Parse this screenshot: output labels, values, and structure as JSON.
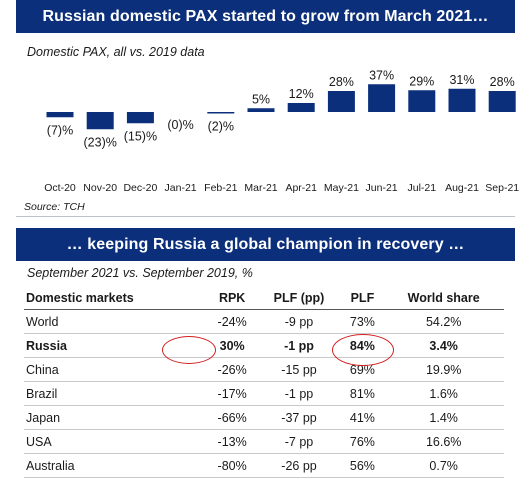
{
  "top_panel": {
    "title": "Russian domestic PAX started to grow from March 2021…",
    "subtitle": "Domestic PAX, all vs. 2019 data",
    "source": "Source: TCH"
  },
  "chart_data": {
    "type": "bar",
    "title": "Domestic PAX, all vs. 2019 data",
    "xlabel": "",
    "ylabel": "",
    "unit": "%",
    "categories": [
      "Oct-20",
      "Nov-20",
      "Dec-20",
      "Jan-21",
      "Feb-21",
      "Mar-21",
      "Apr-21",
      "May-21",
      "Jun-21",
      "Jul-21",
      "Aug-21",
      "Sep-21"
    ],
    "values": [
      -7,
      -23,
      -15,
      0,
      -2,
      5,
      12,
      28,
      37,
      29,
      31,
      28
    ],
    "value_labels": [
      "(7)%",
      "(23)%",
      "(15)%",
      "(0)%",
      "(2)%",
      "5%",
      "12%",
      "28%",
      "37%",
      "29%",
      "31%",
      "28%"
    ],
    "color": "#0b2f7a",
    "grid": false,
    "legend": "none"
  },
  "bottom_panel": {
    "title": "… keeping Russia a global champion in recovery …",
    "subtitle": "September 2021 vs. September 2019, %",
    "table": {
      "headers": [
        "Domestic markets",
        "RPK",
        "PLF (pp)",
        "PLF",
        "World share"
      ],
      "rows": [
        [
          "World",
          "-24%",
          "-9 pp",
          "73%",
          "54.2%"
        ],
        [
          "Russia",
          "30%",
          "-1 pp",
          "84%",
          "3.4%"
        ],
        [
          "China",
          "-26%",
          "-15 pp",
          "69%",
          "19.9%"
        ],
        [
          "Brazil",
          "-17%",
          "-1 pp",
          "81%",
          "1.6%"
        ],
        [
          "Japan",
          "-66%",
          "-37 pp",
          "41%",
          "1.4%"
        ],
        [
          "USA",
          "-13%",
          "-7 pp",
          "76%",
          "16.6%"
        ],
        [
          "Australia",
          "-80%",
          "-26 pp",
          "56%",
          "0.7%"
        ]
      ],
      "highlight_row": "Russia",
      "highlight_color": "#d11f1f"
    }
  }
}
